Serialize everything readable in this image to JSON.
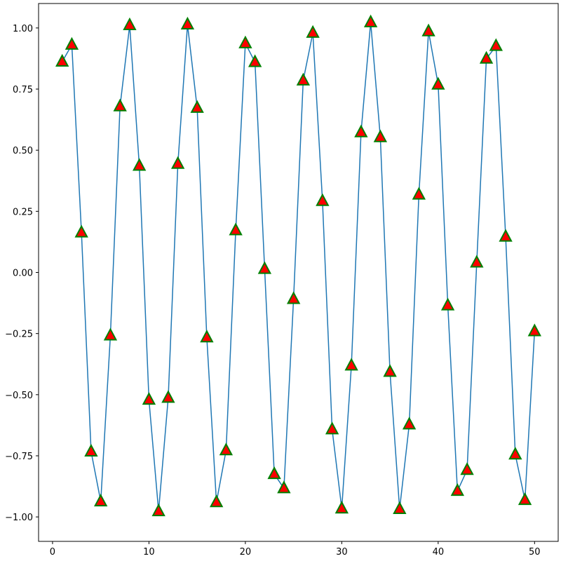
{
  "chart_data": {
    "type": "line",
    "x": [
      1,
      2,
      3,
      4,
      5,
      6,
      7,
      8,
      9,
      10,
      11,
      12,
      13,
      14,
      15,
      16,
      17,
      18,
      19,
      20,
      21,
      22,
      23,
      24,
      25,
      26,
      27,
      28,
      29,
      30,
      31,
      32,
      33,
      34,
      35,
      36,
      37,
      38,
      39,
      40,
      41,
      42,
      43,
      44,
      45,
      46,
      47,
      48,
      49,
      50
    ],
    "series": [
      {
        "color": "#1f77b4",
        "marker": "triangle",
        "marker_face": "#ff0000",
        "marker_edge": "#008000",
        "values": [
          0.862,
          0.931,
          0.163,
          -0.733,
          -0.937,
          -0.258,
          0.679,
          1.011,
          0.436,
          -0.521,
          -0.977,
          -0.513,
          0.444,
          1.014,
          0.673,
          -0.266,
          -0.94,
          -0.728,
          0.172,
          0.937,
          0.86,
          0.014,
          -0.825,
          -0.883,
          -0.109,
          0.785,
          0.98,
          0.292,
          -0.642,
          -0.966,
          -0.381,
          0.573,
          1.023,
          0.553,
          -0.407,
          -0.968,
          -0.622,
          0.318,
          0.986,
          0.768,
          -0.135,
          -0.894,
          -0.808,
          0.04,
          0.874,
          0.926,
          0.146,
          -0.745,
          -0.931,
          -0.241
        ]
      }
    ],
    "xlim": [
      -1.45,
      52.45
    ],
    "xticks": [
      0,
      10,
      20,
      30,
      40,
      50
    ],
    "ylim": [
      -1.1,
      1.1
    ],
    "yticks": [
      {
        "value": -1,
        "label": "−1.00"
      },
      {
        "value": -0.75,
        "label": "−0.75"
      },
      {
        "value": -0.5,
        "label": "−0.50"
      },
      {
        "value": -0.25,
        "label": "−0.25"
      },
      {
        "value": 0,
        "label": "0.00"
      },
      {
        "value": 0.25,
        "label": "0.25"
      },
      {
        "value": 0.5,
        "label": "0.50"
      },
      {
        "value": 0.75,
        "label": "0.75"
      },
      {
        "value": 1,
        "label": "1.00"
      }
    ],
    "grid": false
  }
}
